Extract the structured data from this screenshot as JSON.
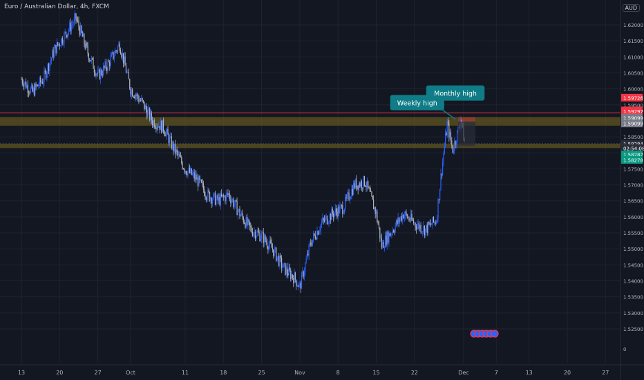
{
  "chart_header": {
    "symbol": "Euro / Australian Dollar, 4h, FXCM",
    "currency": "AUD"
  },
  "colors": {
    "background": "#131722",
    "grid": "#1f2330",
    "axis_text": "#b2b5be",
    "candle_blue": "#2962ff",
    "candle_grey": "#b2b5be",
    "zone_yellow": "#7a6a1e",
    "callout": "#0f7c87",
    "red_line": "#f23645",
    "price_green": "#089981",
    "badge_red": "#f23645"
  },
  "chart_data": {
    "type": "candlestick",
    "ylim": [
      1.52,
      1.625
    ],
    "y_ticks": [
      1.525,
      1.53,
      1.535,
      1.54,
      1.545,
      1.55,
      1.555,
      1.56,
      1.565,
      1.57,
      1.575,
      1.58,
      1.585,
      1.59,
      1.595,
      1.6,
      1.605,
      1.61,
      1.615,
      1.62
    ],
    "y_tick_labels": [
      "1.52500",
      "1.53000",
      "1.53500",
      "1.54000",
      "1.54500",
      "1.55000",
      "1.55500",
      "1.56000",
      "1.56500",
      "1.57000",
      "1.57500",
      "1.58000",
      "1.58500",
      "1.59000",
      "1.59500",
      "1.60000",
      "1.60500",
      "1.61000",
      "1.61500",
      "1.62000"
    ],
    "x_labels": [
      {
        "text": "13",
        "day": 0
      },
      {
        "text": "20",
        "day": 7
      },
      {
        "text": "27",
        "day": 14
      },
      {
        "text": "Oct",
        "day": 20
      },
      {
        "text": "11",
        "day": 30
      },
      {
        "text": "18",
        "day": 37
      },
      {
        "text": "25",
        "day": 44
      },
      {
        "text": "Nov",
        "day": 51
      },
      {
        "text": "8",
        "day": 58
      },
      {
        "text": "15",
        "day": 65
      },
      {
        "text": "22",
        "day": 72
      },
      {
        "text": "Dec",
        "day": 81
      },
      {
        "text": "7",
        "day": 87
      },
      {
        "text": "13",
        "day": 93
      },
      {
        "text": "20",
        "day": 100
      },
      {
        "text": "27",
        "day": 107
      }
    ],
    "series": [
      {
        "day": 0,
        "price": 1.603
      },
      {
        "day": 2,
        "price": 1.599
      },
      {
        "day": 4,
        "price": 1.603
      },
      {
        "day": 6,
        "price": 1.612
      },
      {
        "day": 8,
        "price": 1.617
      },
      {
        "day": 10,
        "price": 1.622
      },
      {
        "day": 12,
        "price": 1.612
      },
      {
        "day": 14,
        "price": 1.604
      },
      {
        "day": 16,
        "price": 1.608
      },
      {
        "day": 18,
        "price": 1.614
      },
      {
        "day": 20,
        "price": 1.6
      },
      {
        "day": 22,
        "price": 1.596
      },
      {
        "day": 24,
        "price": 1.59
      },
      {
        "day": 26,
        "price": 1.588
      },
      {
        "day": 28,
        "price": 1.581
      },
      {
        "day": 30,
        "price": 1.575
      },
      {
        "day": 32,
        "price": 1.572
      },
      {
        "day": 34,
        "price": 1.567
      },
      {
        "day": 36,
        "price": 1.565
      },
      {
        "day": 38,
        "price": 1.567
      },
      {
        "day": 40,
        "price": 1.561
      },
      {
        "day": 42,
        "price": 1.556
      },
      {
        "day": 44,
        "price": 1.554
      },
      {
        "day": 46,
        "price": 1.55
      },
      {
        "day": 48,
        "price": 1.544
      },
      {
        "day": 50,
        "price": 1.541
      },
      {
        "day": 51,
        "price": 1.538
      },
      {
        "day": 53,
        "price": 1.552
      },
      {
        "day": 55,
        "price": 1.558
      },
      {
        "day": 57,
        "price": 1.561
      },
      {
        "day": 59,
        "price": 1.563
      },
      {
        "day": 61,
        "price": 1.57
      },
      {
        "day": 63,
        "price": 1.571
      },
      {
        "day": 65,
        "price": 1.561
      },
      {
        "day": 66,
        "price": 1.551
      },
      {
        "day": 68,
        "price": 1.556
      },
      {
        "day": 70,
        "price": 1.561
      },
      {
        "day": 72,
        "price": 1.558
      },
      {
        "day": 74,
        "price": 1.556
      },
      {
        "day": 76,
        "price": 1.559
      },
      {
        "day": 77,
        "price": 1.575
      },
      {
        "day": 78,
        "price": 1.589
      },
      {
        "day": 79,
        "price": 1.581
      },
      {
        "day": 80,
        "price": 1.587
      },
      {
        "day": 80.5,
        "price": 1.591
      },
      {
        "day": 81.2,
        "price": 1.583
      }
    ],
    "zones": [
      {
        "label": "resistance-zone",
        "y1": 1.5885,
        "y2": 1.5912
      },
      {
        "label": "support-zone",
        "y1": 1.5815,
        "y2": 1.5828
      }
    ],
    "annotations": [
      {
        "text": "Weekly high",
        "day": 72.5,
        "price": 1.5955
      },
      {
        "text": "Monthly high",
        "day": 79.5,
        "price": 1.5985
      }
    ],
    "price_scale_labels": [
      {
        "text": "1.59726",
        "price": 1.59726,
        "color": "red"
      },
      {
        "text": "1.59324",
        "price": 1.59324,
        "color": "red"
      },
      {
        "text": "1.59297",
        "price": 1.59297,
        "color": "red"
      },
      {
        "text": "1.59124",
        "price": 1.59124,
        "color": "red"
      },
      {
        "text": "1.59099",
        "price": 1.59099,
        "color": "grey"
      },
      {
        "text": "1.59099",
        "price": 1.5892,
        "color": "grey"
      },
      {
        "text": "1.58284",
        "price": 1.58284,
        "color": "dark"
      },
      {
        "text": "02:54:08",
        "price": 1.5815,
        "color": "dark"
      },
      {
        "text": "1.58282",
        "price": 1.5795,
        "color": "green"
      },
      {
        "text": "1.58278",
        "price": 1.5778,
        "color": "green"
      }
    ],
    "bottom_axis_zero": "0"
  }
}
